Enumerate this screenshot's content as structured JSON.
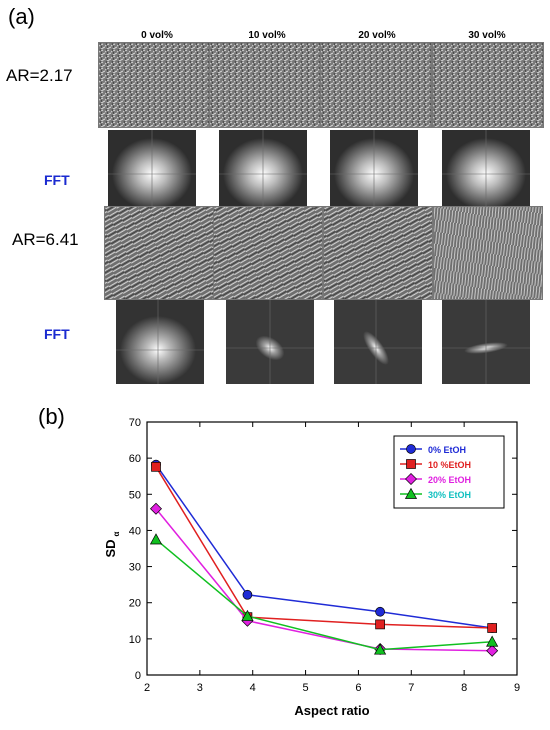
{
  "figure": {
    "panel_a_label": "(a)",
    "panel_b_label": "(b)",
    "columns": [
      "0 vol%",
      "10 vol%",
      "20 vol%",
      "30 vol%"
    ],
    "row_labels": [
      "AR=2.17",
      "AR=6.41"
    ],
    "fft_label": "FFT"
  },
  "chart_data": {
    "type": "line",
    "xlabel": "Aspect ratio",
    "ylabel": "SD",
    "ylabel_sub": "α",
    "xlim": [
      2,
      9
    ],
    "ylim": [
      0,
      70
    ],
    "xticks": [
      2,
      3,
      4,
      5,
      6,
      7,
      8,
      9
    ],
    "yticks": [
      0,
      10,
      20,
      30,
      40,
      50,
      60,
      70
    ],
    "legend_position": "top-right",
    "series": [
      {
        "name": "0% EtOH",
        "color": "#1f2bd6",
        "marker": "circle",
        "x": [
          2.17,
          3.9,
          6.41,
          8.53
        ],
        "y": [
          58.2,
          22.2,
          17.5,
          13.0
        ]
      },
      {
        "name": "10 %EtOH",
        "color": "#e02020",
        "marker": "square",
        "x": [
          2.17,
          3.9,
          6.41,
          8.53
        ],
        "y": [
          57.6,
          16.0,
          14.0,
          13.0
        ]
      },
      {
        "name": "20% EtOH",
        "color": "#e020e0",
        "marker": "diamond",
        "x": [
          2.17,
          3.9,
          6.41,
          8.53
        ],
        "y": [
          46.0,
          15.0,
          7.2,
          6.7
        ]
      },
      {
        "name": "30% EtOH",
        "color": "#10c020",
        "marker": "triangle",
        "x": [
          2.17,
          3.9,
          6.41,
          8.53
        ],
        "y": [
          37.5,
          16.3,
          7.0,
          9.2
        ]
      }
    ],
    "legend_text_colors": [
      "#1f2bd6",
      "#e02020",
      "#e020e0",
      "#10c0c0"
    ]
  }
}
